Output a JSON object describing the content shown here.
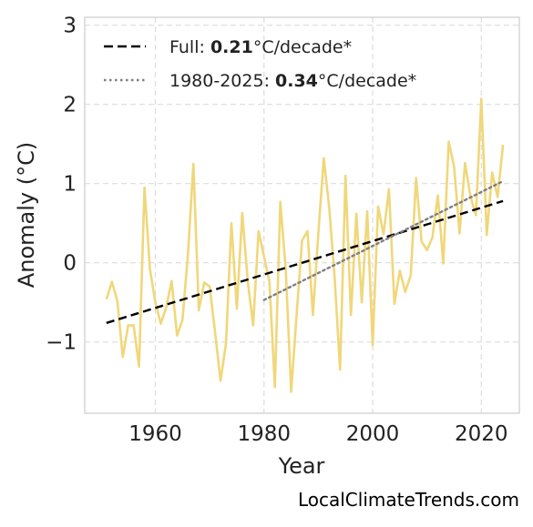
{
  "chart_data": {
    "type": "line",
    "title": "",
    "xlabel": "Year",
    "ylabel": "Anomaly (°C)",
    "xlim": [
      1947,
      2027
    ],
    "ylim": [
      -1.9,
      3.1
    ],
    "xticks": [
      1960,
      1980,
      2000,
      2020
    ],
    "yticks": [
      -1,
      0,
      1,
      2,
      3
    ],
    "ytick_labels": [
      "−1",
      "0",
      "1",
      "2",
      "3"
    ],
    "grid": true,
    "legend_position": "top-left",
    "series": [
      {
        "role": "anomaly",
        "color": "#f0d77a",
        "style": "solid",
        "x": [
          1951,
          1952,
          1953,
          1954,
          1955,
          1956,
          1957,
          1958,
          1959,
          1960,
          1961,
          1962,
          1963,
          1964,
          1965,
          1966,
          1967,
          1968,
          1969,
          1970,
          1971,
          1972,
          1973,
          1974,
          1975,
          1976,
          1977,
          1978,
          1979,
          1980,
          1981,
          1982,
          1983,
          1984,
          1985,
          1986,
          1987,
          1988,
          1989,
          1990,
          1991,
          1992,
          1993,
          1994,
          1995,
          1996,
          1997,
          1998,
          1999,
          2000,
          2001,
          2002,
          2003,
          2004,
          2005,
          2006,
          2007,
          2008,
          2009,
          2010,
          2011,
          2012,
          2013,
          2014,
          2015,
          2016,
          2017,
          2018,
          2019,
          2020,
          2021,
          2022,
          2023,
          2024
        ],
        "y": [
          -0.46,
          -0.24,
          -0.48,
          -1.19,
          -0.79,
          -0.79,
          -1.31,
          0.95,
          -0.08,
          -0.5,
          -0.77,
          -0.56,
          -0.23,
          -0.92,
          -0.72,
          0.11,
          1.25,
          -0.6,
          -0.25,
          -0.3,
          -0.88,
          -1.49,
          -1.02,
          0.5,
          -0.58,
          0.63,
          -0.23,
          -0.79,
          0.4,
          0.08,
          -0.24,
          -1.57,
          0.77,
          -0.08,
          -1.63,
          -0.66,
          0.28,
          0.4,
          -0.66,
          0.37,
          1.32,
          0.7,
          -0.18,
          -1.35,
          1.1,
          -0.66,
          0.62,
          -0.5,
          0.65,
          -1.04,
          0.71,
          0.36,
          0.93,
          -0.52,
          -0.1,
          -0.37,
          -0.16,
          1.07,
          0.27,
          0.16,
          0.32,
          0.85,
          -0.01,
          1.53,
          1.21,
          0.37,
          1.26,
          0.84,
          0.6,
          2.07,
          0.35,
          1.14,
          0.83,
          1.49
        ]
      },
      {
        "role": "full-trend",
        "name": "Full: 0.21°C/decade*",
        "color": "#000000",
        "style": "dashed",
        "x": [
          1951,
          2024
        ],
        "y": [
          -0.76,
          0.78
        ]
      },
      {
        "role": "recent-trend",
        "name": "1980-2025: 0.34°C/decade*",
        "color": "#808080",
        "style": "dotted",
        "x": [
          1980,
          2024
        ],
        "y": [
          -0.47,
          1.03
        ]
      }
    ],
    "legend": [
      {
        "prefix": "Full: ",
        "value": "0.21",
        "suffix": "°C/decade*",
        "color": "#000000",
        "style": "dashed"
      },
      {
        "prefix": "1980-2025: ",
        "value": "0.34",
        "suffix": "°C/decade*",
        "color": "#808080",
        "style": "dotted"
      }
    ]
  },
  "watermark": "LocalClimateTrends.com"
}
